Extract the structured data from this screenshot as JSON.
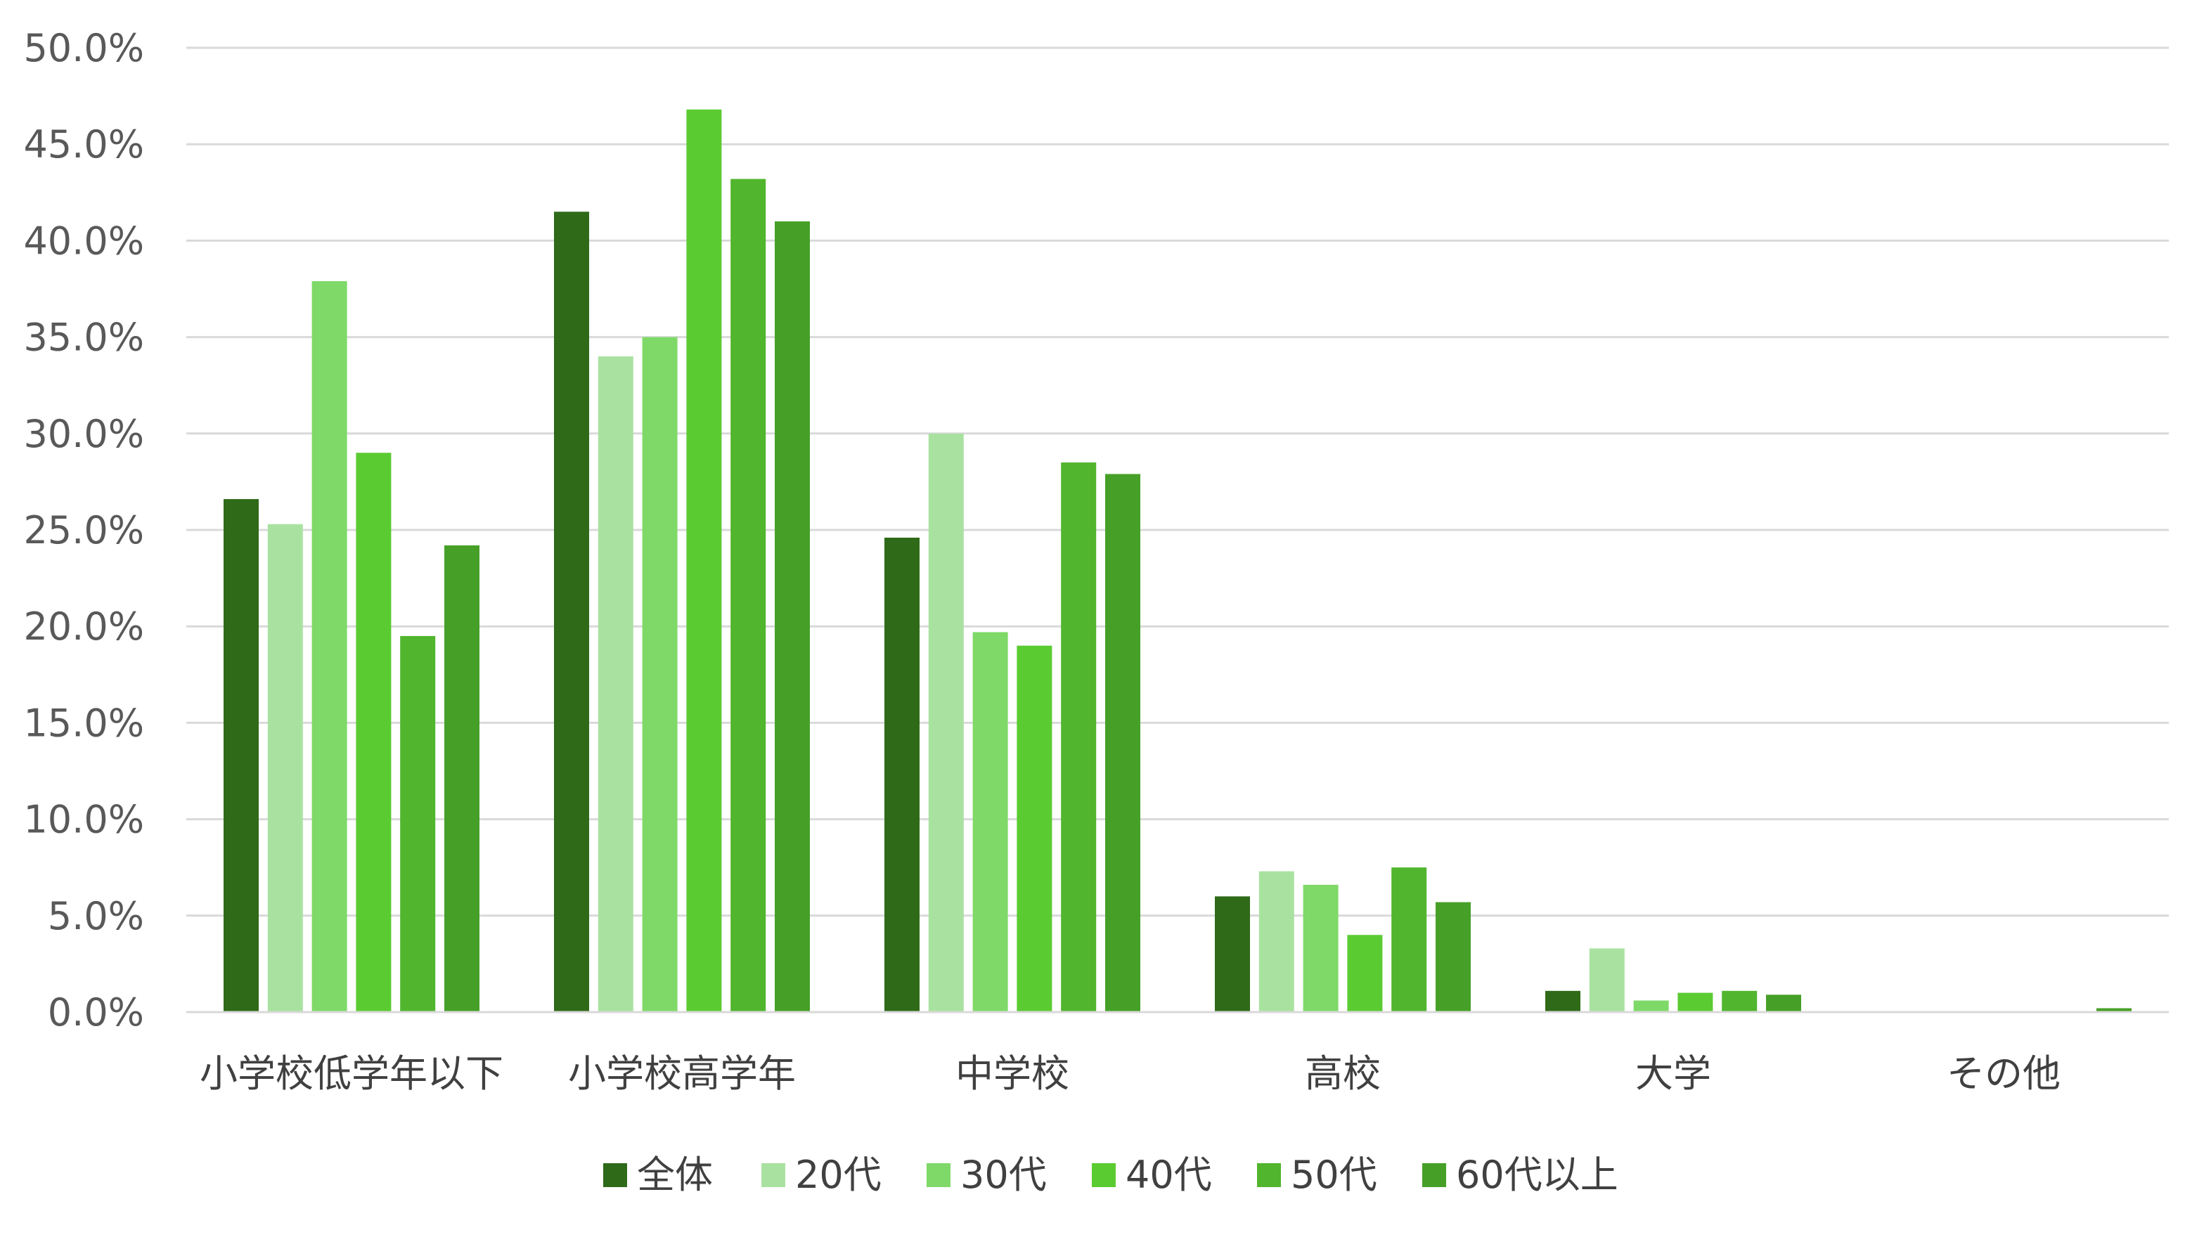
{
  "chart_data": {
    "type": "bar",
    "categories": [
      "小学校低学年以下",
      "小学校高学年",
      "中学校",
      "高校",
      "大学",
      "その他"
    ],
    "series": [
      {
        "name": "全体",
        "color": "#2f6a19",
        "values": [
          26.6,
          41.5,
          24.6,
          6.0,
          1.1,
          0.0
        ]
      },
      {
        "name": "20代",
        "color": "#a9e2a0",
        "values": [
          25.3,
          34.0,
          30.0,
          7.3,
          3.3,
          0.0
        ]
      },
      {
        "name": "30代",
        "color": "#7fd968",
        "values": [
          37.9,
          35.0,
          19.7,
          6.6,
          0.6,
          0.0
        ]
      },
      {
        "name": "40代",
        "color": "#5bcb32",
        "values": [
          29.0,
          46.8,
          19.0,
          4.0,
          1.0,
          0.0
        ]
      },
      {
        "name": "50代",
        "color": "#51b52e",
        "values": [
          19.5,
          43.2,
          28.5,
          7.5,
          1.1,
          0.0
        ]
      },
      {
        "name": "60代以上",
        "color": "#46a028",
        "values": [
          24.2,
          41.0,
          27.9,
          5.7,
          0.9,
          0.2
        ]
      }
    ],
    "yticks": [
      "0.0%",
      "5.0%",
      "10.0%",
      "15.0%",
      "20.0%",
      "25.0%",
      "30.0%",
      "35.0%",
      "40.0%",
      "45.0%",
      "50.0%"
    ],
    "ylim": [
      0,
      50
    ],
    "grid": true,
    "legend_position": "bottom"
  }
}
